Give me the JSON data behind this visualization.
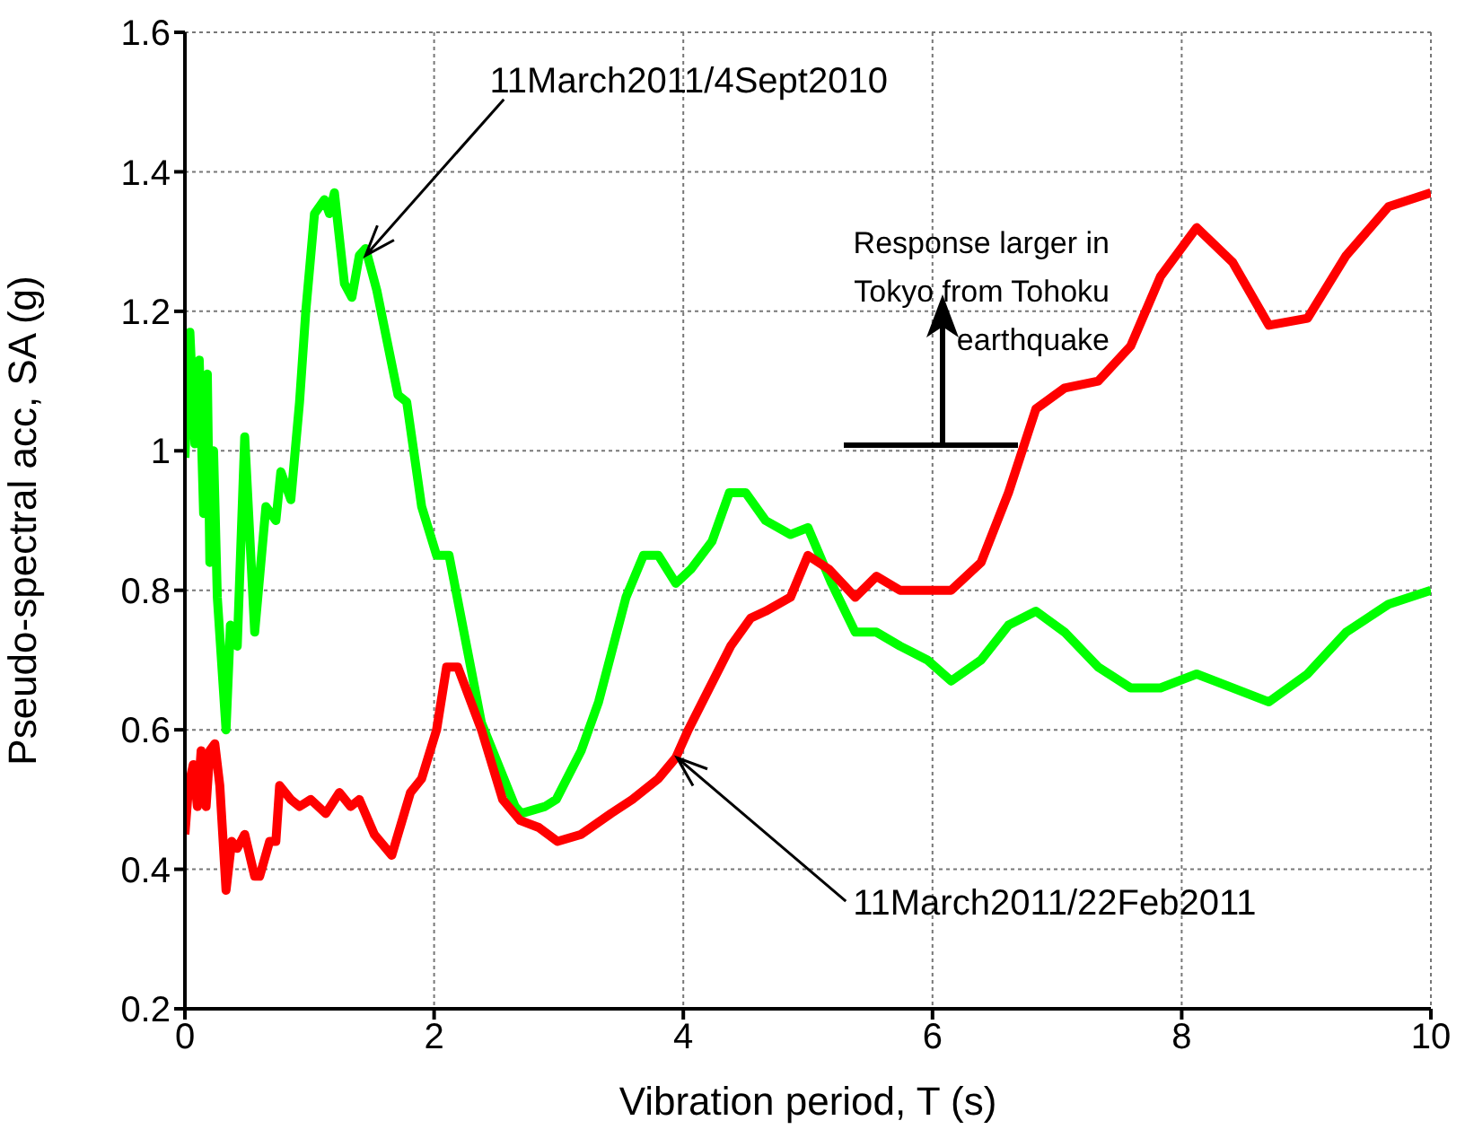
{
  "chart_data": {
    "type": "line",
    "xlabel": "Vibration period, T (s)",
    "ylabel": "Pseudo-spectral acc, SA (g)",
    "xlim": [
      0,
      10
    ],
    "xticks": [
      0,
      2,
      4,
      6,
      8,
      10
    ],
    "ylim": [
      0.2,
      1.6
    ],
    "yticks": [
      0.2,
      0.4,
      0.6,
      0.8,
      1,
      1.2,
      1.4,
      1.6
    ],
    "grid": true,
    "legend": false,
    "marker": "none",
    "line_style": "solid",
    "series": [
      {
        "color": "#00ff00",
        "x": [
          0,
          0.04,
          0.08,
          0.115,
          0.15,
          0.18,
          0.2,
          0.23,
          0.26,
          0.33,
          0.365,
          0.42,
          0.48,
          0.56,
          0.65,
          0.73,
          0.77,
          0.85,
          0.92,
          0.97,
          1.04,
          1.12,
          1.16,
          1.2,
          1.28,
          1.34,
          1.4,
          1.45,
          1.54,
          1.71,
          1.78,
          1.9,
          2.02,
          2.12,
          2.38,
          2.65,
          2.7,
          2.89,
          2.98,
          3.18,
          3.32,
          3.54,
          3.68,
          3.8,
          3.94,
          4.06,
          4.23,
          4.37,
          4.5,
          4.66,
          4.86,
          5.0,
          5.19,
          5.38,
          5.55,
          5.74,
          5.96,
          6.15,
          6.39,
          6.61,
          6.83,
          7.06,
          7.33,
          7.59,
          7.83,
          8.12,
          8.7,
          9.01,
          9.32,
          9.66,
          10
        ],
        "values": [
          0.99,
          1.17,
          1.01,
          1.13,
          0.91,
          1.11,
          0.84,
          1.0,
          0.79,
          0.6,
          0.75,
          0.72,
          1.02,
          0.74,
          0.92,
          0.9,
          0.97,
          0.93,
          1.07,
          1.2,
          1.34,
          1.36,
          1.34,
          1.37,
          1.24,
          1.22,
          1.28,
          1.29,
          1.23,
          1.08,
          1.07,
          0.92,
          0.85,
          0.85,
          0.61,
          0.49,
          0.48,
          0.49,
          0.5,
          0.57,
          0.64,
          0.79,
          0.85,
          0.85,
          0.81,
          0.83,
          0.87,
          0.94,
          0.94,
          0.9,
          0.88,
          0.89,
          0.81,
          0.74,
          0.74,
          0.72,
          0.7,
          0.67,
          0.7,
          0.75,
          0.77,
          0.74,
          0.69,
          0.66,
          0.66,
          0.68,
          0.64,
          0.68,
          0.74,
          0.78,
          0.8
        ]
      },
      {
        "color": "#ff0000",
        "x": [
          0,
          0.03,
          0.067,
          0.1,
          0.13,
          0.17,
          0.2,
          0.24,
          0.28,
          0.33,
          0.375,
          0.42,
          0.48,
          0.56,
          0.6,
          0.68,
          0.73,
          0.76,
          0.85,
          0.92,
          1.01,
          1.13,
          1.24,
          1.33,
          1.4,
          1.52,
          1.66,
          1.81,
          1.9,
          2.02,
          2.1,
          2.19,
          2.38,
          2.55,
          2.69,
          2.84,
          2.99,
          3.18,
          3.42,
          3.59,
          3.8,
          3.94,
          4.04,
          4.21,
          4.38,
          4.54,
          4.66,
          4.86,
          5.0,
          5.17,
          5.38,
          5.55,
          5.74,
          5.96,
          6.15,
          6.39,
          6.61,
          6.83,
          7.06,
          7.33,
          7.59,
          7.83,
          8.12,
          8.41,
          8.7,
          9.01,
          9.32,
          9.66,
          10
        ],
        "values": [
          0.45,
          0.52,
          0.55,
          0.49,
          0.57,
          0.49,
          0.57,
          0.58,
          0.52,
          0.37,
          0.44,
          0.43,
          0.45,
          0.39,
          0.39,
          0.44,
          0.44,
          0.52,
          0.5,
          0.49,
          0.5,
          0.48,
          0.51,
          0.49,
          0.5,
          0.45,
          0.42,
          0.51,
          0.53,
          0.6,
          0.69,
          0.69,
          0.6,
          0.5,
          0.47,
          0.46,
          0.44,
          0.45,
          0.48,
          0.5,
          0.53,
          0.56,
          0.6,
          0.66,
          0.72,
          0.76,
          0.77,
          0.79,
          0.85,
          0.83,
          0.79,
          0.82,
          0.8,
          0.8,
          0.8,
          0.84,
          0.94,
          1.06,
          1.09,
          1.1,
          1.15,
          1.25,
          1.32,
          1.27,
          1.18,
          1.19,
          1.28,
          1.35,
          1.37
        ]
      }
    ],
    "annotations": [
      {
        "text": "11March2011/4Sept2010",
        "x": 1.45,
        "y": 1.28
      },
      {
        "text": "11March2011/22Feb2011",
        "x": 3.95,
        "y": 0.56
      },
      "Response larger in Tokyo from Tohoku earthquake"
    ]
  }
}
